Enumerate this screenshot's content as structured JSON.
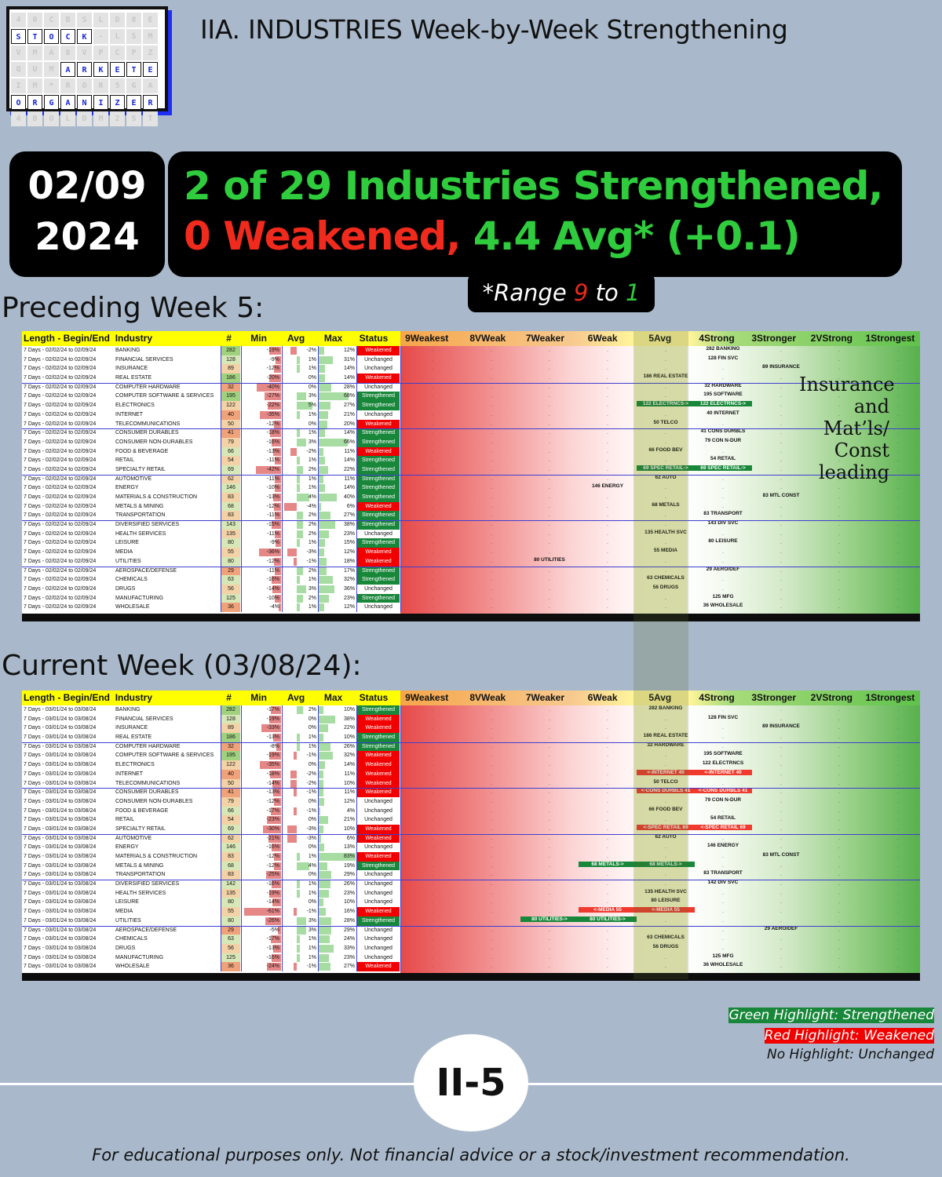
{
  "logo": {
    "rows": [
      [
        "4",
        "0",
        "C",
        "B",
        "S",
        "L",
        "D",
        "8",
        "E"
      ],
      [
        "S",
        "T",
        "O",
        "C",
        "K",
        "-",
        "L",
        "S",
        "M"
      ],
      [
        "V",
        "M",
        "A",
        "8",
        "V",
        "P",
        "C",
        "P",
        "Z"
      ],
      [
        "Q",
        "U",
        "M",
        "A",
        "R",
        "K",
        "E",
        "T",
        "E"
      ],
      [
        "I",
        "M",
        "*",
        "R",
        "O",
        "R",
        "5",
        "G",
        "A"
      ],
      [
        "O",
        "R",
        "G",
        "A",
        "N",
        "I",
        "Z",
        "E",
        "R"
      ],
      [
        "4",
        "B",
        "O",
        "L",
        "D",
        "M",
        "2",
        "S",
        "T"
      ]
    ],
    "highlight": [
      [
        1,
        0
      ],
      [
        1,
        1
      ],
      [
        1,
        2
      ],
      [
        1,
        3
      ],
      [
        1,
        4
      ],
      [
        3,
        3
      ],
      [
        3,
        4
      ],
      [
        3,
        5
      ],
      [
        3,
        6
      ],
      [
        3,
        7
      ],
      [
        3,
        8
      ],
      [
        5,
        0
      ],
      [
        5,
        1
      ],
      [
        5,
        2
      ],
      [
        5,
        3
      ],
      [
        5,
        4
      ],
      [
        5,
        5
      ],
      [
        5,
        6
      ],
      [
        5,
        7
      ],
      [
        5,
        8
      ]
    ]
  },
  "title": "IIA. INDUSTRIES Week-by-Week Strengthening",
  "date": {
    "line1": "02/09",
    "line2": "2024"
  },
  "summary": {
    "strengthened": "2 of 29 Industries Strengthened,",
    "weakened": "0 Weakened,",
    "avg": " 4.4 Avg* (+0.1)"
  },
  "range": {
    "prefix": "*Range ",
    "nine": "9",
    "mid": " to ",
    "one": "1"
  },
  "sections": {
    "preceding": "Preceding Week 5:",
    "current": "Current Week (03/08/24):"
  },
  "columns": [
    "Length - Begin/End",
    "Industry",
    "#",
    "Min",
    "Avg",
    "Max",
    "Status",
    "9Weakest",
    "8VWeak",
    "7Weaker",
    "6Weak",
    "5Avg",
    "4Strong",
    "3Stronger",
    "2VStrong",
    "1Strongest"
  ],
  "note": [
    "Insurance",
    "and",
    "Mat’ls/",
    "Const",
    "leading"
  ],
  "preceding": {
    "period": "7 Days - 02/02/24 to 02/09/24",
    "rows": [
      [
        "BANKING",
        282,
        "-19%",
        "-2%",
        "12%",
        "Weakened",
        [
          [
            5,
            "282 BANKING",
            ""
          ]
        ]
      ],
      [
        "FINANCIAL SERVICES",
        128,
        "-9%",
        "1%",
        "31%",
        "Unchanged",
        [
          [
            5,
            "128 FIN SVC",
            ""
          ]
        ]
      ],
      [
        "INSURANCE",
        89,
        "-12%",
        "1%",
        "14%",
        "Unchanged",
        [
          [
            6,
            "89 INSURANCE",
            ""
          ]
        ]
      ],
      [
        "REAL ESTATE",
        186,
        "-20%",
        "0%",
        "14%",
        "Weakened",
        [
          [
            4,
            "186 REAL ESTATE",
            ""
          ]
        ]
      ],
      [
        "COMPUTER HARDWARE",
        32,
        "-40%",
        "0%",
        "28%",
        "Unchanged",
        [
          [
            5,
            "32 HARDWARE",
            ""
          ]
        ]
      ],
      [
        "COMPUTER SOFTWARE & SERVICES",
        195,
        "-27%",
        "3%",
        "68%",
        "Strengthened",
        [
          [
            5,
            "195 SOFTWARE",
            ""
          ]
        ]
      ],
      [
        "ELECTRONICS",
        122,
        "-22%",
        "5%",
        "27%",
        "Strengthened",
        [
          [
            4,
            "122 ELECTRNCS->",
            "S"
          ],
          [
            5,
            "122 ELECTRNCS->",
            "S"
          ]
        ]
      ],
      [
        "INTERNET",
        40,
        "-35%",
        "1%",
        "21%",
        "Unchanged",
        [
          [
            5,
            "40 INTERNET",
            ""
          ]
        ]
      ],
      [
        "TELECOMMUNICATIONS",
        50,
        "-12%",
        "0%",
        "20%",
        "Weakened",
        [
          [
            4,
            "50 TELCO",
            ""
          ]
        ]
      ],
      [
        "CONSUMER DURABLES",
        41,
        "-18%",
        "1%",
        "14%",
        "Strengthened",
        [
          [
            5,
            "41 CONS DURBLS",
            ""
          ]
        ]
      ],
      [
        "CONSUMER NON-DURABLES",
        79,
        "-16%",
        "3%",
        "66%",
        "Strengthened",
        [
          [
            5,
            "79 CON N-DUR",
            ""
          ]
        ]
      ],
      [
        "FOOD & BEVERAGE",
        66,
        "-13%",
        "-2%",
        "11%",
        "Weakened",
        [
          [
            4,
            "66 FOOD BEV",
            ""
          ]
        ]
      ],
      [
        "RETAIL",
        54,
        "-11%",
        "1%",
        "14%",
        "Strengthened",
        [
          [
            5,
            "54 RETAIL",
            ""
          ]
        ]
      ],
      [
        "SPECIALTY RETAIL",
        69,
        "-42%",
        "2%",
        "22%",
        "Strengthened",
        [
          [
            4,
            "69 SPEC RETAIL->",
            "S"
          ],
          [
            5,
            "69 SPEC RETAIL->",
            "S"
          ]
        ]
      ],
      [
        "AUTOMOTIVE",
        62,
        "-11%",
        "1%",
        "11%",
        "Strengthened",
        [
          [
            4,
            "62 AUTO",
            ""
          ]
        ]
      ],
      [
        "ENERGY",
        146,
        "-10%",
        "1%",
        "14%",
        "Strengthened",
        [
          [
            3,
            "146 ENERGY",
            ""
          ]
        ]
      ],
      [
        "MATERIALS & CONSTRUCTION",
        83,
        "-13%",
        "4%",
        "40%",
        "Strengthened",
        [
          [
            6,
            "83 MTL CONST",
            ""
          ]
        ]
      ],
      [
        "METALS & MINING",
        68,
        "-12%",
        "-4%",
        "6%",
        "Weakened",
        [
          [
            4,
            "68 METALS",
            ""
          ]
        ]
      ],
      [
        "TRANSPORTATION",
        83,
        "-11%",
        "2%",
        "27%",
        "Strengthened",
        [
          [
            5,
            "83 TRANSPORT",
            ""
          ]
        ]
      ],
      [
        "DIVERSIFIED SERVICES",
        143,
        "-15%",
        "2%",
        "38%",
        "Strengthened",
        [
          [
            5,
            "143 DIV SVC",
            ""
          ]
        ]
      ],
      [
        "HEALTH SERVICES",
        135,
        "-11%",
        "2%",
        "23%",
        "Unchanged",
        [
          [
            4,
            "135 HEALTH SVC",
            ""
          ]
        ]
      ],
      [
        "LEISURE",
        80,
        "-9%",
        "1%",
        "15%",
        "Strengthened",
        [
          [
            5,
            "80 LEISURE",
            ""
          ]
        ]
      ],
      [
        "MEDIA",
        55,
        "-36%",
        "-3%",
        "12%",
        "Weakened",
        [
          [
            4,
            "55 MEDIA",
            ""
          ]
        ]
      ],
      [
        "UTILITIES",
        80,
        "-12%",
        "-1%",
        "18%",
        "Weakened",
        [
          [
            2,
            "80 UTILITIES",
            ""
          ]
        ]
      ],
      [
        "AEROSPACE/DEFENSE",
        29,
        "-11%",
        "2%",
        "17%",
        "Strengthened",
        [
          [
            5,
            "29 AERO/DEF",
            ""
          ]
        ]
      ],
      [
        "CHEMICALS",
        63,
        "-16%",
        "1%",
        "32%",
        "Strengthened",
        [
          [
            4,
            "63 CHEMICALS",
            ""
          ]
        ]
      ],
      [
        "DRUGS",
        56,
        "-14%",
        "3%",
        "36%",
        "Unchanged",
        [
          [
            4,
            "56 DRUGS",
            ""
          ]
        ]
      ],
      [
        "MANUFACTURING",
        125,
        "-10%",
        "2%",
        "23%",
        "Strengthened",
        [
          [
            5,
            "125 MFG",
            ""
          ]
        ]
      ],
      [
        "WHOLESALE",
        36,
        "-4%",
        "1%",
        "12%",
        "Unchanged",
        [
          [
            5,
            "36 WHOLESALE",
            ""
          ]
        ]
      ]
    ]
  },
  "current": {
    "period": "7 Days - 03/01/24 to 03/08/24",
    "rows": [
      [
        "BANKING",
        282,
        "-17%",
        "2%",
        "10%",
        "Strengthened",
        [
          [
            4,
            "282 BANKING",
            ""
          ]
        ]
      ],
      [
        "FINANCIAL SERVICES",
        128,
        "-19%",
        "0%",
        "38%",
        "Weakened",
        [
          [
            5,
            "128 FIN SVC",
            ""
          ]
        ]
      ],
      [
        "INSURANCE",
        89,
        "-33%",
        "0%",
        "22%",
        "Weakened",
        [
          [
            6,
            "89 INSURANCE",
            ""
          ]
        ]
      ],
      [
        "REAL ESTATE",
        186,
        "-13%",
        "1%",
        "10%",
        "Strengthened",
        [
          [
            4,
            "186 REAL ESTATE",
            ""
          ]
        ]
      ],
      [
        "COMPUTER HARDWARE",
        32,
        "-8%",
        "1%",
        "26%",
        "Strengthened",
        [
          [
            4,
            "32 HARDWARE",
            ""
          ]
        ]
      ],
      [
        "COMPUTER SOFTWARE & SERVICES",
        195,
        "-19%",
        "-1%",
        "32%",
        "Weakened",
        [
          [
            5,
            "195 SOFTWARE",
            ""
          ]
        ]
      ],
      [
        "ELECTRONICS",
        122,
        "-35%",
        "0%",
        "14%",
        "Weakened",
        [
          [
            5,
            "122 ELECTRNCS",
            ""
          ]
        ]
      ],
      [
        "INTERNET",
        40,
        "-18%",
        "-2%",
        "11%",
        "Weakened",
        [
          [
            4,
            "<-INTERNET 40",
            "W"
          ],
          [
            5,
            "<-INTERNET 40",
            "W"
          ]
        ]
      ],
      [
        "TELECOMMUNICATIONS",
        50,
        "-14%",
        "-2%",
        "10%",
        "Weakened",
        [
          [
            4,
            "50 TELCO",
            ""
          ]
        ]
      ],
      [
        "CONSUMER DURABLES",
        41,
        "-13%",
        "-1%",
        "11%",
        "Weakened",
        [
          [
            4,
            "<-CONS DURBLS 41",
            "W"
          ],
          [
            5,
            "<-CONS DURBLS 41",
            "W"
          ]
        ]
      ],
      [
        "CONSUMER NON-DURABLES",
        79,
        "-12%",
        "0%",
        "12%",
        "Unchanged",
        [
          [
            5,
            "79 CON N-DUR",
            ""
          ]
        ]
      ],
      [
        "FOOD & BEVERAGE",
        66,
        "-17%",
        "-1%",
        "4%",
        "Unchanged",
        [
          [
            4,
            "66 FOOD BEV",
            ""
          ]
        ]
      ],
      [
        "RETAIL",
        54,
        "-23%",
        "0%",
        "21%",
        "Unchanged",
        [
          [
            5,
            "54 RETAIL",
            ""
          ]
        ]
      ],
      [
        "SPECIALTY RETAIL",
        69,
        "-30%",
        "-3%",
        "10%",
        "Weakened",
        [
          [
            4,
            "<-SPEC RETAIL 69",
            "W"
          ],
          [
            5,
            "<-SPEC RETAIL 69",
            "W"
          ]
        ]
      ],
      [
        "AUTOMOTIVE",
        62,
        "-21%",
        "-3%",
        "6%",
        "Weakened",
        [
          [
            4,
            "62 AUTO",
            ""
          ]
        ]
      ],
      [
        "ENERGY",
        146,
        "-16%",
        "0%",
        "13%",
        "Unchanged",
        [
          [
            5,
            "146 ENERGY",
            ""
          ]
        ]
      ],
      [
        "MATERIALS & CONSTRUCTION",
        83,
        "-12%",
        "1%",
        "83%",
        "Weakened",
        [
          [
            6,
            "83 MTL CONST",
            ""
          ]
        ]
      ],
      [
        "METALS & MINING",
        68,
        "-12%",
        "4%",
        "19%",
        "Strengthened",
        [
          [
            3,
            "68 METALS->",
            "S"
          ],
          [
            4,
            "68 METALS->",
            "S"
          ]
        ]
      ],
      [
        "TRANSPORTATION",
        83,
        "-25%",
        "0%",
        "29%",
        "Unchanged",
        [
          [
            5,
            "83 TRANSPORT",
            ""
          ]
        ]
      ],
      [
        "DIVERSIFIED SERVICES",
        142,
        "-16%",
        "1%",
        "26%",
        "Unchanged",
        [
          [
            5,
            "142 DIV SVC",
            ""
          ]
        ]
      ],
      [
        "HEALTH SERVICES",
        135,
        "-19%",
        "1%",
        "23%",
        "Unchanged",
        [
          [
            4,
            "135 HEALTH SVC",
            ""
          ]
        ]
      ],
      [
        "LEISURE",
        80,
        "-14%",
        "0%",
        "10%",
        "Unchanged",
        [
          [
            4,
            "80 LEISURE",
            ""
          ]
        ]
      ],
      [
        "MEDIA",
        55,
        "-61%",
        "-1%",
        "16%",
        "Weakened",
        [
          [
            3,
            "<-MEDIA 55",
            "W"
          ],
          [
            4,
            "<-MEDIA 55",
            "W"
          ]
        ]
      ],
      [
        "UTILITIES",
        80,
        "-26%",
        "3%",
        "28%",
        "Strengthened",
        [
          [
            2,
            "80 UTILITIES->",
            "S"
          ],
          [
            3,
            "80 UTILITIES->",
            "S"
          ]
        ]
      ],
      [
        "AEROSPACE/DEFENSE",
        29,
        "-5%",
        "3%",
        "29%",
        "Unchanged",
        [
          [
            6,
            "29 AERO/DEF",
            ""
          ]
        ]
      ],
      [
        "CHEMICALS",
        63,
        "-17%",
        "1%",
        "24%",
        "Unchanged",
        [
          [
            4,
            "63 CHEMICALS",
            ""
          ]
        ]
      ],
      [
        "DRUGS",
        56,
        "-13%",
        "1%",
        "33%",
        "Unchanged",
        [
          [
            4,
            "56 DRUGS",
            ""
          ]
        ]
      ],
      [
        "MANUFACTURING",
        125,
        "-16%",
        "1%",
        "23%",
        "Unchanged",
        [
          [
            5,
            "125 MFG",
            ""
          ]
        ]
      ],
      [
        "WHOLESALE",
        36,
        "-24%",
        "-1%",
        "27%",
        "Weakened",
        [
          [
            5,
            "36 WHOLESALE",
            ""
          ]
        ]
      ]
    ]
  },
  "legend": {
    "green": "Green Highlight: Strengthened",
    "red": "Red Highlight: Weakened",
    "none": "No Highlight: Unchanged"
  },
  "badge": "II-5",
  "footer": "For educational purposes only. Not financial advice or a stock/investment recommendation."
}
